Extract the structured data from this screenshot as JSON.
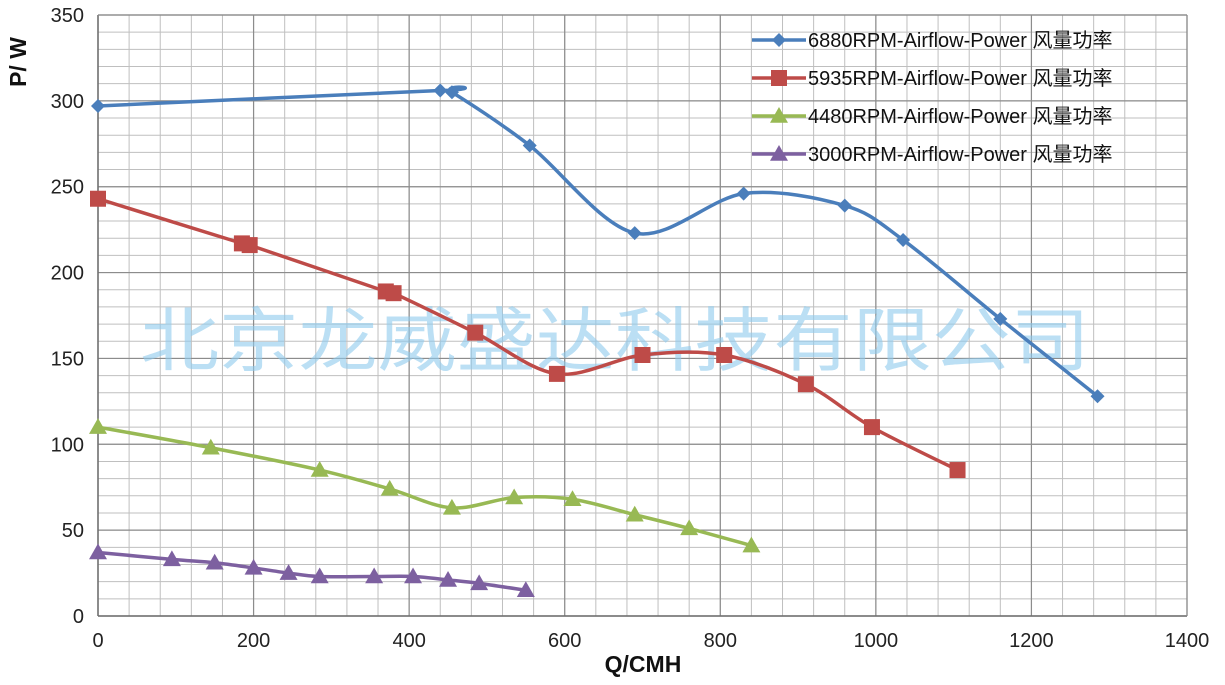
{
  "chart_data": {
    "type": "line",
    "title": "",
    "xlabel": "Q/CMH",
    "ylabel": "P/ W",
    "xlim": [
      0,
      1400
    ],
    "ylim": [
      0,
      350
    ],
    "xticks": [
      0,
      200,
      400,
      600,
      800,
      1000,
      1200,
      1400
    ],
    "yticks": [
      0,
      50,
      100,
      150,
      200,
      250,
      300,
      350
    ],
    "grid": true,
    "minor_grid_x_step": 40,
    "minor_grid_y_step": 10,
    "legend_position": "top-right",
    "watermark": "北京龙威盛达科技有限公司",
    "series": [
      {
        "name": "6880RPM-Airflow-Power 风量功率",
        "color": "#4a7ebb",
        "marker": "diamond",
        "x": [
          0,
          440,
          455,
          555,
          690,
          830,
          960,
          1035,
          1160,
          1285
        ],
        "y": [
          297,
          306,
          305,
          274,
          223,
          246,
          239,
          219,
          173,
          128
        ]
      },
      {
        "name": "5935RPM-Airflow-Power 风量功率",
        "color": "#be4b48",
        "marker": "square",
        "x": [
          0,
          185,
          195,
          370,
          380,
          485,
          590,
          700,
          805,
          910,
          995,
          1105
        ],
        "y": [
          243,
          217,
          216,
          189,
          188,
          165,
          141,
          152,
          152,
          135,
          110,
          85
        ]
      },
      {
        "name": "4480RPM-Airflow-Power 风量功率",
        "color": "#98b954",
        "marker": "triangle",
        "x": [
          0,
          145,
          285,
          375,
          455,
          535,
          610,
          690,
          760,
          840
        ],
        "y": [
          110,
          98,
          85,
          74,
          63,
          69,
          68,
          59,
          51,
          41
        ]
      },
      {
        "name": "3000RPM-Airflow-Power 风量功率",
        "color": "#7d60a0",
        "marker": "triangle",
        "x": [
          0,
          95,
          150,
          200,
          245,
          285,
          355,
          405,
          450,
          490,
          550
        ],
        "y": [
          37,
          33,
          31,
          28,
          25,
          23,
          23,
          23,
          21,
          19,
          15
        ]
      }
    ]
  }
}
